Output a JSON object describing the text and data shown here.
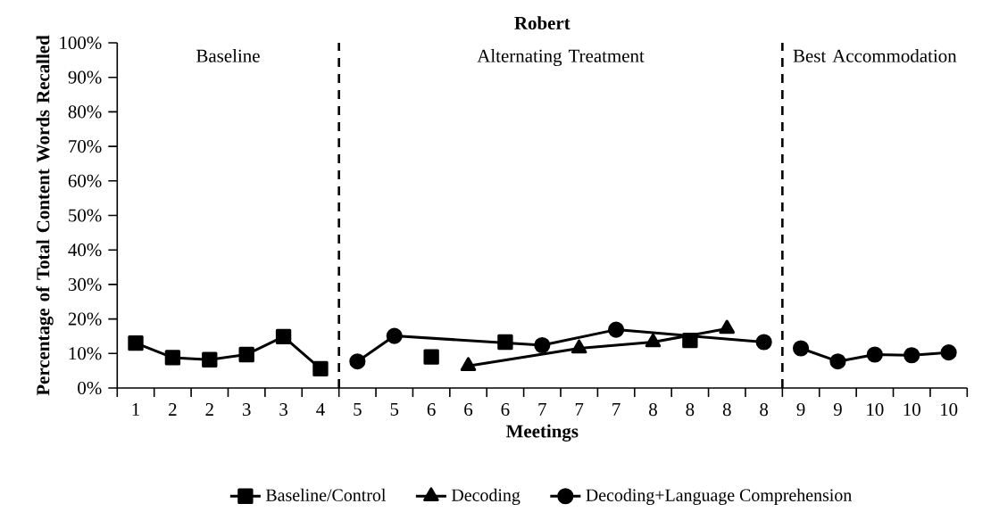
{
  "chart_data": {
    "type": "line",
    "title": "Robert",
    "xlabel": "Meetings",
    "ylabel": "Percentage of Total Content Words Recalled",
    "categories": [
      "1",
      "2",
      "2",
      "3",
      "3",
      "4",
      "5",
      "5",
      "6",
      "6",
      "6",
      "7",
      "7",
      "7",
      "8",
      "8",
      "8",
      "8",
      "9",
      "9",
      "10",
      "10",
      "10"
    ],
    "series": [
      {
        "name": "Baseline/Control",
        "color": "#000000",
        "marker": "square",
        "values": [
          13,
          8.8,
          8.2,
          9.7,
          14.9,
          5.6,
          null,
          null,
          null,
          null,
          null,
          null,
          null,
          null,
          null,
          null,
          null,
          null,
          null,
          null,
          null,
          null,
          null
        ]
      },
      {
        "type": "scatter",
        "color": "#000000",
        "marker": "square",
        "values": [
          null,
          null,
          null,
          null,
          null,
          null,
          null,
          null,
          9,
          null,
          13.3,
          null,
          null,
          null,
          null,
          13.8,
          null,
          null,
          null,
          null,
          null,
          null,
          null
        ]
      },
      {
        "name": "Decoding",
        "color": "#000000",
        "marker": "triangle",
        "values": [
          null,
          null,
          null,
          null,
          null,
          null,
          null,
          null,
          null,
          6.4,
          null,
          null,
          11.5,
          null,
          13.3,
          null,
          17.2,
          null,
          null,
          null,
          null,
          null,
          null
        ]
      },
      {
        "name": "Decoding+Language Comprehension",
        "color": "#000000",
        "marker": "circle",
        "values": [
          null,
          null,
          null,
          null,
          null,
          null,
          7.7,
          15.1,
          null,
          null,
          null,
          12.4,
          null,
          16.9,
          null,
          null,
          null,
          13.3,
          null,
          null,
          null,
          null,
          null
        ]
      },
      {
        "color": "#000000",
        "marker": "circle",
        "values": [
          null,
          null,
          null,
          null,
          null,
          null,
          null,
          null,
          null,
          null,
          null,
          null,
          null,
          null,
          null,
          null,
          null,
          null,
          11.5,
          7.7,
          9.7,
          9.5,
          10.3
        ]
      }
    ],
    "ylim": [
      0,
      100
    ],
    "yticks": [
      {
        "value": 0,
        "label": "0%"
      },
      {
        "value": 10,
        "label": "10%"
      },
      {
        "value": 20,
        "label": "20%"
      },
      {
        "value": 30,
        "label": "30%"
      },
      {
        "value": 40,
        "label": "40%"
      },
      {
        "value": 50,
        "label": "50%"
      },
      {
        "value": 60,
        "label": "60%"
      },
      {
        "value": 70,
        "label": "70%"
      },
      {
        "value": 80,
        "label": "80%"
      },
      {
        "value": 90,
        "label": "90%"
      },
      {
        "value": 100,
        "label": "100%"
      }
    ],
    "annotations": [
      "Baseline",
      "Alternating Treatment",
      "Best Accommodation"
    ],
    "legend": "bottom",
    "grid": false,
    "line_style": "solid"
  }
}
